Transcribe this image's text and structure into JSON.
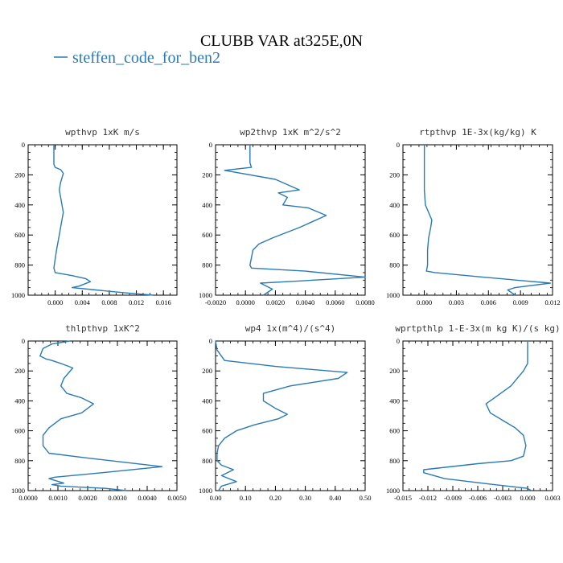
{
  "figure": {
    "title": "CLUBB VAR at325E,0N",
    "legend_label": "steffen_code_for_ben2",
    "line_color": "#2a7ab5"
  },
  "chart_data": [
    {
      "type": "line",
      "title": "wpthvp  1xK m/s",
      "xlim": [
        -0.004,
        0.018
      ],
      "ylim": [
        1000,
        0
      ],
      "xticks": [
        0.0,
        0.004,
        0.008,
        0.012,
        0.016
      ],
      "xtick_labels": [
        "0.000",
        "0.004",
        "0.008",
        "0.012",
        "0.016"
      ],
      "yticks": [
        0,
        200,
        400,
        600,
        800,
        1000
      ],
      "ytick_labels": [
        "0",
        "200",
        "400",
        "600",
        "800",
        "1000"
      ],
      "series": [
        {
          "x": [
            -0.0002,
            -0.0002,
            0.0,
            0.0008,
            0.0012,
            0.0008,
            0.0006,
            0.0008,
            0.0012,
            0.001,
            0.0006,
            0.0002,
            0.0,
            -0.0002,
            0.0,
            0.0025,
            0.0045,
            0.0052,
            0.0035,
            0.0025,
            0.006,
            0.0105,
            0.0145
          ],
          "y": [
            0,
            130,
            150,
            165,
            190,
            250,
            300,
            350,
            450,
            500,
            600,
            700,
            760,
            820,
            850,
            870,
            890,
            910,
            940,
            950,
            965,
            985,
            1000
          ]
        }
      ]
    },
    {
      "type": "line",
      "title": "wp2thvp  1xK m^2/s^2",
      "xlim": [
        -0.002,
        0.008
      ],
      "ylim": [
        1000,
        0
      ],
      "xticks": [
        -0.002,
        0.0,
        0.002,
        0.004,
        0.006,
        0.008
      ],
      "xtick_labels": [
        "-0.0020",
        "0.0000",
        "0.0020",
        "0.0040",
        "0.0060",
        "0.0080"
      ],
      "yticks": [
        0,
        200,
        400,
        600,
        800,
        1000
      ],
      "ytick_labels": [
        "0",
        "200",
        "400",
        "600",
        "800",
        "1000"
      ],
      "series": [
        {
          "x": [
            0.0003,
            0.0003,
            0.0004,
            -0.0014,
            0.002,
            0.0036,
            0.0022,
            0.0028,
            0.0025,
            0.0042,
            0.0054,
            0.0036,
            0.0018,
            0.0009,
            0.0005,
            0.0003,
            0.0004,
            0.004,
            0.008,
            0.0028,
            0.001,
            0.0014,
            0.0018,
            0.0012
          ],
          "y": [
            0,
            120,
            150,
            170,
            230,
            300,
            320,
            350,
            400,
            420,
            470,
            550,
            620,
            660,
            700,
            800,
            820,
            840,
            880,
            910,
            920,
            940,
            960,
            1000
          ]
        }
      ]
    },
    {
      "type": "line",
      "title": "rtpthvp  1E-3x(kg/kg) K",
      "xlim": [
        -0.002,
        0.012
      ],
      "ylim": [
        1000,
        0
      ],
      "xticks": [
        0.0,
        0.003,
        0.006,
        0.009,
        0.012
      ],
      "xtick_labels": [
        "0.000",
        "0.003",
        "0.006",
        "0.009",
        "0.012"
      ],
      "yticks": [
        0,
        200,
        400,
        600,
        800,
        1000
      ],
      "ytick_labels": [
        "0",
        "200",
        "400",
        "600",
        "800",
        "1000"
      ],
      "series": [
        {
          "x": [
            0.0,
            0.0,
            0.0001,
            0.0004,
            0.0007,
            0.0006,
            0.0004,
            0.0003,
            0.0003,
            0.0002,
            0.001,
            0.0055,
            0.0118,
            0.0085,
            0.0078,
            0.0085
          ],
          "y": [
            0,
            300,
            400,
            450,
            500,
            550,
            620,
            700,
            800,
            840,
            850,
            880,
            920,
            950,
            965,
            1000
          ]
        }
      ]
    },
    {
      "type": "line",
      "title": "thlpthvp  1xK^2",
      "xlim": [
        0.0,
        0.005
      ],
      "ylim": [
        1000,
        0
      ],
      "xticks": [
        0.0,
        0.001,
        0.002,
        0.003,
        0.004,
        0.005
      ],
      "xtick_labels": [
        "0.0000",
        "0.0010",
        "0.0020",
        "0.0030",
        "0.0040",
        "0.0050"
      ],
      "yticks": [
        0,
        200,
        400,
        600,
        800,
        1000
      ],
      "ytick_labels": [
        "0",
        "200",
        "400",
        "600",
        "800",
        "1000"
      ],
      "series": [
        {
          "x": [
            0.0014,
            0.0008,
            0.0005,
            0.0004,
            0.0006,
            0.0008,
            0.0011,
            0.0015,
            0.0012,
            0.0011,
            0.0013,
            0.0018,
            0.0022,
            0.0018,
            0.0011,
            0.0007,
            0.0005,
            0.0005,
            0.0007,
            0.0019,
            0.0045,
            0.0025,
            0.0009,
            0.0007,
            0.0012,
            0.0008,
            0.0011,
            0.0026,
            0.0033
          ],
          "y": [
            0,
            20,
            50,
            100,
            120,
            130,
            150,
            180,
            250,
            300,
            350,
            380,
            420,
            480,
            520,
            580,
            630,
            700,
            750,
            780,
            840,
            880,
            910,
            920,
            950,
            960,
            970,
            985,
            1000
          ]
        }
      ]
    },
    {
      "type": "line",
      "title": "wp4  1x(m^4)/(s^4)",
      "xlim": [
        0.0,
        0.5
      ],
      "ylim": [
        1000,
        0
      ],
      "xticks": [
        0.0,
        0.1,
        0.2,
        0.3,
        0.4,
        0.5
      ],
      "xtick_labels": [
        "0.00",
        "0.10",
        "0.20",
        "0.30",
        "0.40",
        "0.50"
      ],
      "yticks": [
        0,
        200,
        400,
        600,
        800,
        1000
      ],
      "ytick_labels": [
        "0",
        "200",
        "400",
        "600",
        "800",
        "1000"
      ],
      "series": [
        {
          "x": [
            0.0,
            0.005,
            0.03,
            0.2,
            0.44,
            0.41,
            0.25,
            0.16,
            0.16,
            0.2,
            0.24,
            0.21,
            0.13,
            0.07,
            0.03,
            0.01,
            0.005,
            0.005,
            0.02,
            0.06,
            0.02,
            0.07,
            0.02,
            0.01
          ],
          "y": [
            0,
            60,
            130,
            170,
            210,
            250,
            300,
            350,
            400,
            450,
            490,
            520,
            560,
            600,
            650,
            700,
            750,
            800,
            830,
            860,
            900,
            940,
            970,
            1000
          ]
        }
      ]
    },
    {
      "type": "line",
      "title": "wprtpthlp  1-E-3x(m kg K)/(s kg)",
      "xlim": [
        -0.015,
        0.003
      ],
      "ylim": [
        1000,
        0
      ],
      "xticks": [
        -0.015,
        -0.012,
        -0.009,
        -0.006,
        -0.003,
        0.0,
        0.003
      ],
      "xtick_labels": [
        "-0.015",
        "-0.012",
        "-0.009",
        "-0.006",
        "-0.003",
        "0.000",
        "0.003"
      ],
      "yticks": [
        0,
        200,
        400,
        600,
        800,
        1000
      ],
      "ytick_labels": [
        "0",
        "200",
        "400",
        "600",
        "800",
        "1000"
      ],
      "series": [
        {
          "x": [
            0.0,
            0.0,
            -0.0005,
            -0.002,
            -0.004,
            -0.005,
            -0.0045,
            -0.003,
            -0.0015,
            -0.0005,
            -0.0002,
            -0.0005,
            -0.002,
            -0.006,
            -0.0125,
            -0.0125,
            -0.01,
            -0.004,
            0.0,
            0.0003,
            0.0
          ],
          "y": [
            0,
            150,
            200,
            300,
            380,
            420,
            480,
            530,
            580,
            630,
            700,
            770,
            800,
            820,
            860,
            880,
            920,
            960,
            985,
            995,
            1000
          ]
        }
      ]
    }
  ]
}
